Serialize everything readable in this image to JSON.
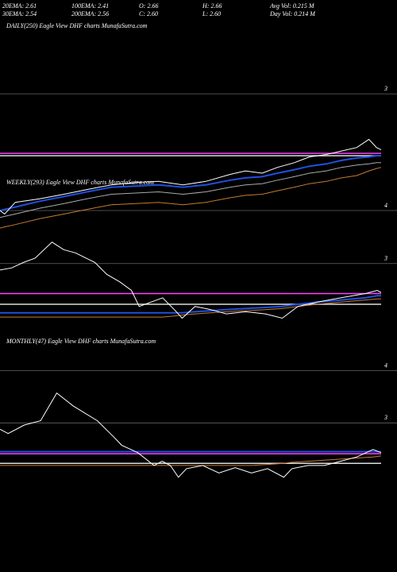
{
  "header": {
    "row1": [
      "20EMA: 2.61",
      "100EMA: 2.41",
      "O: 2.66",
      "H: 2.66",
      "Avg Vol: 0.215 M"
    ],
    "row2": [
      "30EMA: 2.54",
      "200EMA: 2.56",
      "C: 2.60",
      "L: 2.60",
      "Day Vol: 0.214 M"
    ]
  },
  "chart_data": [
    {
      "type": "line",
      "title": "DAILY(250) Eagle View DHF charts MunafaSutra.com",
      "inverted": true,
      "xlim": [
        0,
        250
      ],
      "ylim": [
        2.4,
        4.17
      ],
      "yticks": [
        3,
        4
      ],
      "x": [
        0,
        3,
        10,
        26,
        42,
        57,
        73,
        89,
        104,
        120,
        135,
        151,
        161,
        172,
        182,
        193,
        203,
        214,
        224,
        234,
        242,
        247,
        250
      ],
      "levels": [
        {
          "color": "#ff44ff",
          "value": 3.51
        },
        {
          "color": "#dddddd",
          "value": 3.53
        }
      ],
      "series": [
        {
          "color": "#c87a30",
          "values": [
            4.15,
            4.14,
            4.12,
            4.07,
            4.03,
            3.99,
            3.95,
            3.94,
            3.93,
            3.95,
            3.93,
            3.89,
            3.87,
            3.86,
            3.83,
            3.8,
            3.77,
            3.75,
            3.72,
            3.7,
            3.66,
            3.64,
            3.63
          ]
        },
        {
          "color": "#aaaaaa",
          "values": [
            4.06,
            4.05,
            4.03,
            3.98,
            3.94,
            3.9,
            3.86,
            3.85,
            3.84,
            3.86,
            3.84,
            3.8,
            3.78,
            3.77,
            3.74,
            3.71,
            3.68,
            3.66,
            3.63,
            3.61,
            3.6,
            3.59,
            3.59
          ]
        },
        {
          "color": "#2050e0",
          "values": [
            4.0,
            3.99,
            3.97,
            3.92,
            3.88,
            3.84,
            3.8,
            3.79,
            3.78,
            3.8,
            3.78,
            3.74,
            3.72,
            3.71,
            3.68,
            3.65,
            3.62,
            3.6,
            3.57,
            3.55,
            3.54,
            3.53,
            3.53
          ]
        },
        {
          "color": "#ffffff",
          "values": [
            4.0,
            4.03,
            3.93,
            3.9,
            3.86,
            3.82,
            3.78,
            3.76,
            3.75,
            3.78,
            3.75,
            3.69,
            3.66,
            3.68,
            3.63,
            3.59,
            3.54,
            3.52,
            3.49,
            3.46,
            3.39,
            3.46,
            3.48
          ]
        }
      ]
    },
    {
      "type": "line",
      "title": "WEEKLY(293) Eagle View DHF charts MunafaSutra.com",
      "inverted": true,
      "xlim": [
        0,
        293
      ],
      "ylim": [
        2.69,
        4.1
      ],
      "yticks": [
        3,
        4
      ],
      "x": [
        0,
        9,
        18,
        27,
        40,
        49,
        58,
        73,
        82,
        92,
        101,
        107,
        116,
        125,
        134,
        140,
        150,
        162,
        174,
        189,
        204,
        217,
        229,
        244,
        262,
        281,
        290,
        293
      ],
      "levels": [
        {
          "color": "#ff44ff",
          "value": 3.28
        },
        {
          "color": "#dddddd",
          "value": 3.38
        }
      ],
      "series": [
        {
          "color": "#c87a30",
          "values": [
            3.5,
            3.5,
            3.5,
            3.5,
            3.5,
            3.5,
            3.5,
            3.5,
            3.5,
            3.5,
            3.5,
            3.5,
            3.5,
            3.5,
            3.49,
            3.48,
            3.47,
            3.46,
            3.45,
            3.44,
            3.43,
            3.42,
            3.4,
            3.38,
            3.36,
            3.34,
            3.33,
            3.33
          ]
        },
        {
          "color": "#2050e0",
          "values": [
            3.46,
            3.46,
            3.46,
            3.46,
            3.46,
            3.46,
            3.46,
            3.46,
            3.46,
            3.46,
            3.46,
            3.46,
            3.46,
            3.46,
            3.46,
            3.46,
            3.45,
            3.44,
            3.43,
            3.42,
            3.41,
            3.4,
            3.38,
            3.36,
            3.34,
            3.32,
            3.3,
            3.3
          ]
        },
        {
          "color": "#ffffff",
          "values": [
            3.06,
            3.04,
            2.99,
            2.95,
            2.8,
            2.87,
            2.9,
            2.99,
            3.1,
            3.17,
            3.25,
            3.4,
            3.36,
            3.32,
            3.43,
            3.51,
            3.4,
            3.43,
            3.47,
            3.45,
            3.47,
            3.51,
            3.4,
            3.36,
            3.32,
            3.28,
            3.25,
            3.27
          ]
        }
      ]
    },
    {
      "type": "line",
      "title": "MONTHLY(47) Eagle View DHF charts MunafaSutra.com",
      "inverted": true,
      "xlim": [
        0,
        47
      ],
      "ylim": [
        2.61,
        4.4
      ],
      "yticks": [
        3
      ],
      "x": [
        0,
        1,
        3,
        5,
        7,
        9,
        12,
        14,
        15,
        17,
        19,
        20,
        21,
        22,
        23,
        25,
        27,
        29,
        31,
        33,
        35,
        36,
        38,
        40,
        42,
        44,
        46,
        47
      ],
      "levels": [
        {
          "color": "#ff44ff",
          "value": 3.29
        },
        {
          "color": "#dddddd",
          "value": 3.38
        }
      ],
      "series": [
        {
          "color": "#c87a30",
          "values": [
            3.4,
            3.4,
            3.4,
            3.4,
            3.4,
            3.4,
            3.4,
            3.4,
            3.4,
            3.4,
            3.4,
            3.4,
            3.4,
            3.4,
            3.4,
            3.4,
            3.4,
            3.4,
            3.4,
            3.39,
            3.38,
            3.37,
            3.36,
            3.35,
            3.34,
            3.33,
            3.32,
            3.31
          ]
        },
        {
          "color": "#2050e0",
          "values": [
            3.27,
            3.27,
            3.27,
            3.27,
            3.27,
            3.27,
            3.27,
            3.27,
            3.27,
            3.27,
            3.27,
            3.27,
            3.27,
            3.27,
            3.27,
            3.27,
            3.27,
            3.27,
            3.27,
            3.27,
            3.27,
            3.27,
            3.27,
            3.27,
            3.27,
            3.27,
            3.27,
            3.27
          ]
        },
        {
          "color": "#ffffff",
          "values": [
            3.06,
            3.1,
            3.02,
            2.98,
            2.72,
            2.84,
            2.98,
            3.13,
            3.21,
            3.28,
            3.4,
            3.36,
            3.4,
            3.51,
            3.43,
            3.4,
            3.47,
            3.42,
            3.47,
            3.43,
            3.51,
            3.43,
            3.4,
            3.4,
            3.36,
            3.32,
            3.25,
            3.28
          ]
        }
      ]
    }
  ]
}
